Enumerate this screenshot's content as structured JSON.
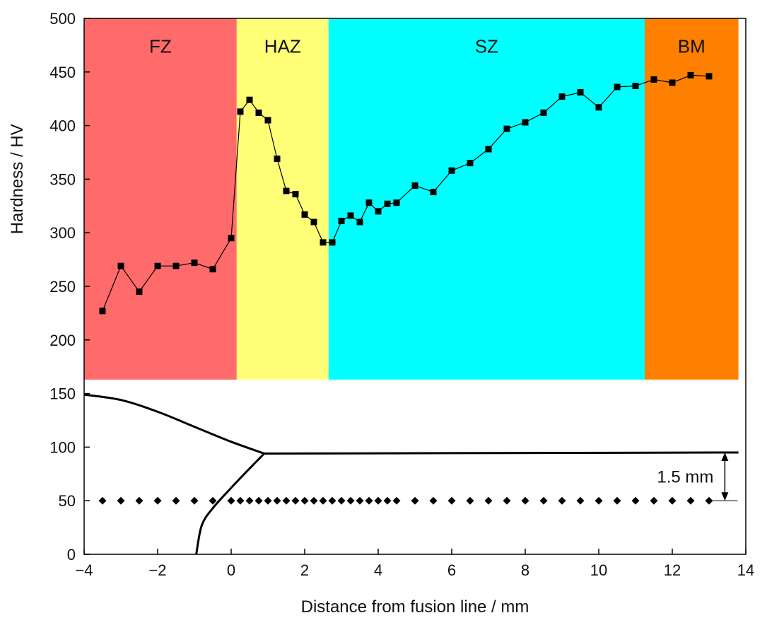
{
  "chart_data": {
    "type": "line",
    "xlabel": "Distance from fusion line / mm",
    "ylabel": "Hardness / HV",
    "xlim": [
      -4,
      14
    ],
    "ylim": [
      0,
      500
    ],
    "x_ticks": [
      -4,
      -2,
      0,
      2,
      4,
      6,
      8,
      10,
      12,
      14
    ],
    "x_tick_labels": [
      "−4",
      "−2",
      "0",
      "2",
      "4",
      "6",
      "8",
      "10",
      "12",
      "14"
    ],
    "y_ticks": [
      0,
      50,
      100,
      150,
      200,
      250,
      300,
      350,
      400,
      450,
      500
    ],
    "y_tick_labels": [
      "0",
      "50",
      "100",
      "150",
      "200",
      "250",
      "300",
      "350",
      "400",
      "450",
      "500"
    ],
    "regions": [
      {
        "name": "FZ",
        "x_start": -4,
        "x_end": 0.15,
        "y_start": 163,
        "y_end": 500,
        "color": "#ff6b6b"
      },
      {
        "name": "HAZ",
        "x_start": 0.15,
        "x_end": 2.65,
        "y_start": 163,
        "y_end": 500,
        "color": "#ffff77"
      },
      {
        "name": "SZ",
        "x_start": 2.65,
        "x_end": 11.25,
        "y_start": 163,
        "y_end": 500,
        "color": "#00ffff"
      },
      {
        "name": "BM",
        "x_start": 11.25,
        "x_end": 13.8,
        "y_start": 163,
        "y_end": 500,
        "color": "#ff8000"
      }
    ],
    "series": [
      {
        "name": "Hardness",
        "x": [
          -3.5,
          -3.0,
          -2.5,
          -2.0,
          -1.5,
          -1.0,
          -0.5,
          0.0,
          0.25,
          0.5,
          0.75,
          1.0,
          1.25,
          1.5,
          1.75,
          2.0,
          2.25,
          2.5,
          2.75,
          3.0,
          3.25,
          3.5,
          3.75,
          4.0,
          4.25,
          4.5,
          5.0,
          5.5,
          6.0,
          6.5,
          7.0,
          7.5,
          8.0,
          8.5,
          9.0,
          9.5,
          10.0,
          10.5,
          11.0,
          11.5,
          12.0,
          12.5,
          13.0
        ],
        "values": [
          227,
          269,
          245,
          269,
          269,
          272,
          266,
          295,
          413,
          424,
          412,
          405,
          369,
          339,
          336,
          317,
          310,
          291,
          291,
          311,
          316,
          310,
          328,
          320,
          327,
          328,
          344,
          338,
          358,
          365,
          378,
          397,
          403,
          412,
          427,
          431,
          417,
          436,
          437,
          443,
          440,
          447,
          446
        ]
      }
    ],
    "test_points": {
      "y": 50,
      "x": [
        -3.5,
        -3.0,
        -2.5,
        -2.0,
        -1.5,
        -1.0,
        -0.5,
        0.0,
        0.25,
        0.5,
        0.75,
        1.0,
        1.25,
        1.5,
        1.75,
        2.0,
        2.25,
        2.5,
        2.75,
        3.0,
        3.25,
        3.5,
        3.75,
        4.0,
        4.25,
        4.5,
        5.0,
        5.5,
        6.0,
        6.5,
        7.0,
        7.5,
        8.0,
        8.5,
        9.0,
        9.5,
        10.0,
        10.5,
        11.0,
        11.5,
        12.0,
        12.5,
        13.0
      ]
    },
    "fusion_profile": {
      "upper_curve": [
        [
          -4,
          149
        ],
        [
          -3,
          144
        ],
        [
          -2,
          133
        ],
        [
          -1,
          119
        ],
        [
          0,
          105
        ],
        [
          0.9,
          94
        ]
      ],
      "lower_curve": [
        [
          -0.95,
          0
        ],
        [
          -0.8,
          27
        ],
        [
          -0.5,
          43
        ],
        [
          0,
          62
        ],
        [
          0.5,
          80
        ],
        [
          0.9,
          94
        ]
      ],
      "top_surface": [
        [
          0.9,
          94
        ],
        [
          13.8,
          95
        ]
      ]
    },
    "annotation": {
      "text": "1.5 mm",
      "x": 13.2,
      "y_from": 50,
      "y_to": 95
    }
  }
}
